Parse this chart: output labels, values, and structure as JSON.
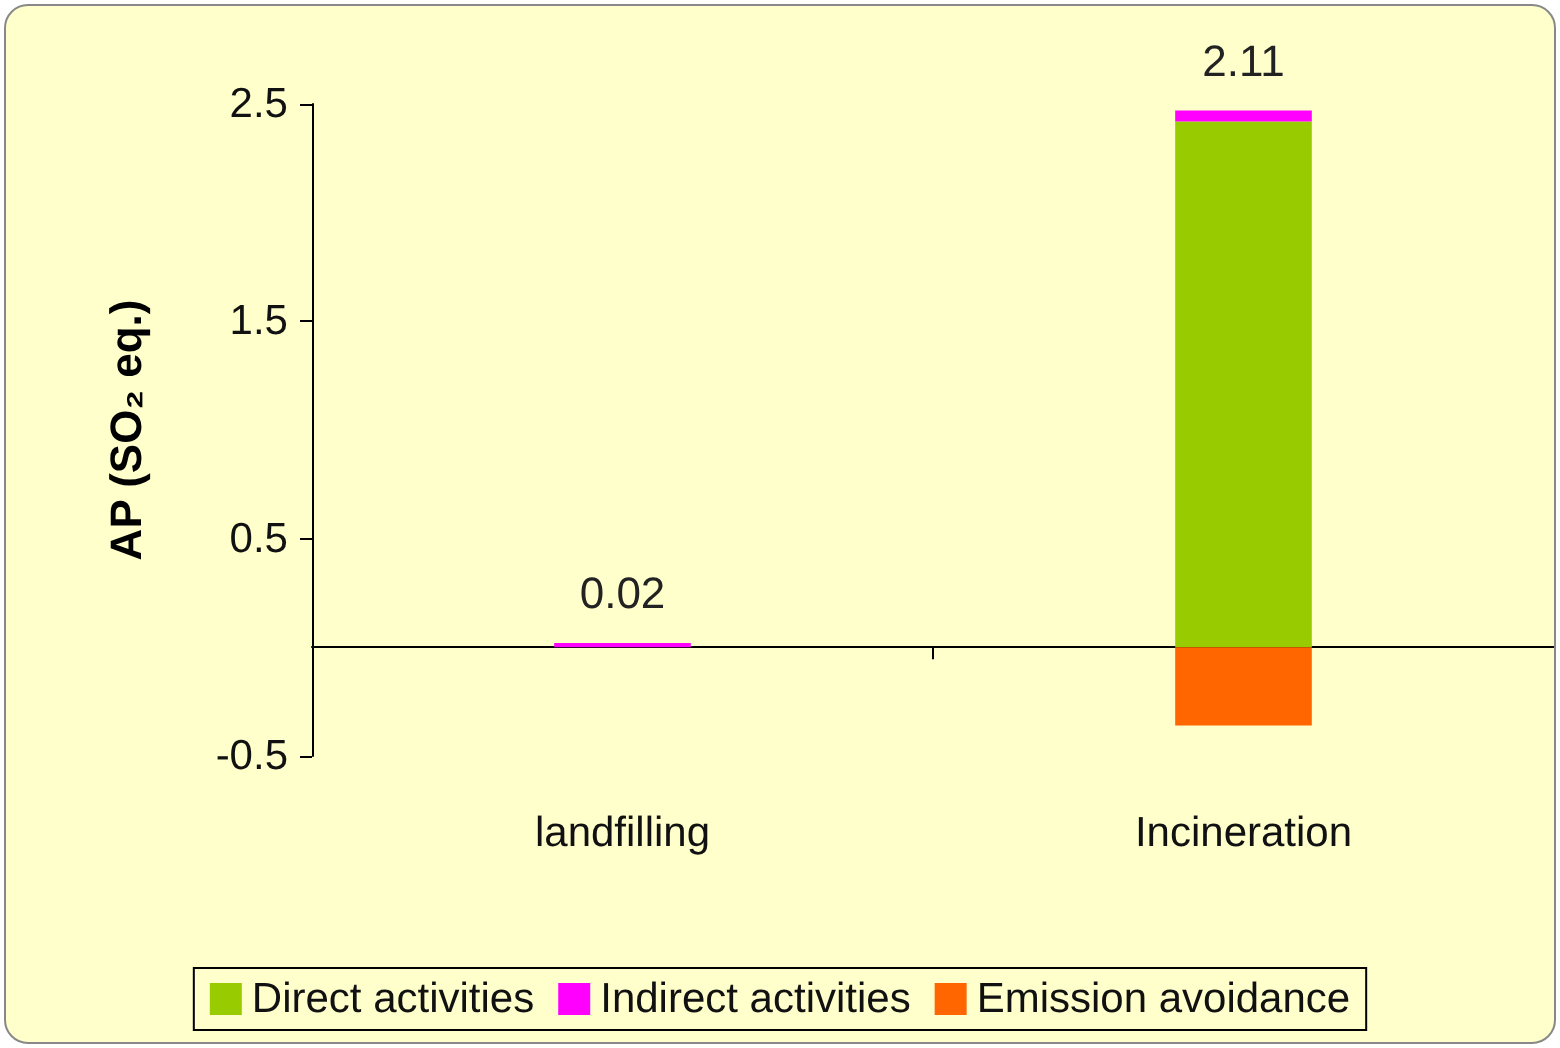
{
  "chart_data": {
    "type": "bar",
    "stacked": true,
    "ylabel": "AP (SO₂ eq.)",
    "categories": [
      "landfilling",
      "Incineration"
    ],
    "series": [
      {
        "name": "Direct activities",
        "color": "#99cc00",
        "values": [
          0,
          2.42
        ]
      },
      {
        "name": "Indirect activities",
        "color": "#ff00ff",
        "values": [
          0.02,
          0.05
        ]
      },
      {
        "name": "Emission avoidance",
        "color": "#ff6600",
        "values": [
          0,
          -0.36
        ]
      }
    ],
    "totals": [
      "0.02",
      "2.11"
    ],
    "ylim": [
      -0.5,
      2.5
    ],
    "yticks": [
      -0.5,
      0.5,
      1.5,
      2.5
    ],
    "grid": false,
    "legend": "bottom"
  }
}
